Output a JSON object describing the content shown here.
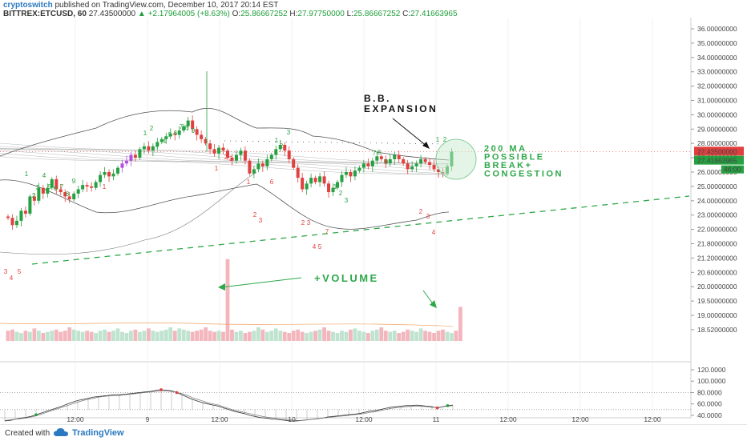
{
  "header": {
    "author": "cryptoswitch",
    "published": "published on TradingView.com, December 10, 2017 20:14 EST",
    "symbol": "BITTREX:ETCUSD, 60",
    "last": "27.43500000",
    "change": "+2.17964005 (+8.63%)",
    "ohlc": {
      "o_label": "O:",
      "o": "25.86667252",
      "h_label": "H:",
      "h": "27.97750000",
      "l_label": "L:",
      "l": "25.86667252",
      "c_label": "C:",
      "c": "27.41663965"
    }
  },
  "footer": {
    "created": "Created with",
    "brand": "TradingView"
  },
  "annotations": {
    "bb_line1": "B.B.",
    "bb_line2": "EXPANSION",
    "ma_lines": [
      "200 MA",
      "POSSIBLE",
      "BREAK+",
      "CONGESTION"
    ],
    "volume": "+VOLUME"
  },
  "colors": {
    "up": "#26a041",
    "down": "#e0403f",
    "purple": "#b34fe0",
    "vol_up": "#bfe3cf",
    "vol_down": "#f3b6bd",
    "annotation": "#2ea84a"
  },
  "chart_data": [
    {
      "type": "candlestick",
      "title": "BITTREX:ETCUSD, 60",
      "x_ticks": [
        "12:00",
        "9",
        "12:00",
        "10",
        "12:00",
        "11",
        "12:00",
        "12:00",
        "12:00"
      ],
      "y_ticks": [
        "36.00000000",
        "35.00000000",
        "34.00000000",
        "33.00000000",
        "32.00000000",
        "31.00000000",
        "30.00000000",
        "29.00000000",
        "28.00000000",
        "27.00000000",
        "26.00000000",
        "25.00000000",
        "24.00000000",
        "23.00000000",
        "22.00000000",
        "21.80000000",
        "21.20000000",
        "20.60000000",
        "20.00000000",
        "19.50000000",
        "19.00000000",
        "18.52000000"
      ],
      "ylim": [
        18.52,
        36.0
      ],
      "price_labels": {
        "last": "27.43500000",
        "close": "27.41663965",
        "countdown": "46:00"
      },
      "closes": [
        22.8,
        22.3,
        22.6,
        23.3,
        23.1,
        24.3,
        24.0,
        24.9,
        24.5,
        24.9,
        25.5,
        24.8,
        24.6,
        24.3,
        24.1,
        24.5,
        24.8,
        25.1,
        25.0,
        24.9,
        25.3,
        25.8,
        26.0,
        25.7,
        25.9,
        26.3,
        26.6,
        26.8,
        27.2,
        27.0,
        27.6,
        27.8,
        27.5,
        27.8,
        28.1,
        28.3,
        28.5,
        28.7,
        28.6,
        28.9,
        29.2,
        29.6,
        29.0,
        28.6,
        28.3,
        28.0,
        27.6,
        27.3,
        27.7,
        27.5,
        27.0,
        26.8,
        27.2,
        27.5,
        26.8,
        25.9,
        26.2,
        26.6,
        26.4,
        26.9,
        27.2,
        27.6,
        27.9,
        27.5,
        26.9,
        26.3,
        25.6,
        24.8,
        25.2,
        25.6,
        25.3,
        25.7,
        25.2,
        24.6,
        24.9,
        25.3,
        25.8,
        26.0,
        25.7,
        26.1,
        26.3,
        26.6,
        26.4,
        26.8,
        27.1,
        26.9,
        26.6,
        26.9,
        27.2,
        26.9,
        26.6,
        26.2,
        26.4,
        26.6,
        26.9,
        26.7,
        26.5,
        26.2,
        26.0,
        25.9,
        26.4,
        27.42
      ],
      "volumes": [
        9,
        10,
        8,
        7,
        9,
        8,
        11,
        9,
        7,
        8,
        9,
        10,
        8,
        9,
        12,
        10,
        9,
        8,
        9,
        8,
        7,
        9,
        10,
        8,
        9,
        11,
        8,
        7,
        9,
        10,
        8,
        9,
        11,
        9,
        8,
        9,
        10,
        12,
        9,
        11,
        10,
        9,
        8,
        9,
        10,
        12,
        9,
        8,
        9,
        8,
        72,
        10,
        8,
        9,
        7,
        8,
        9,
        12,
        10,
        8,
        9,
        11,
        9,
        8,
        7,
        9,
        10,
        8,
        7,
        8,
        9,
        10,
        12,
        9,
        8,
        7,
        9,
        8,
        10,
        11,
        9,
        8,
        7,
        9,
        10,
        12,
        9,
        8,
        9,
        7,
        8,
        10,
        9,
        8,
        11,
        9,
        8,
        7,
        9,
        10,
        8,
        7,
        9,
        30
      ],
      "overlays": [
        "Bollinger Bands",
        "Moving Averages",
        "Trendline"
      ],
      "annotations": [
        "B.B. EXPANSION",
        "200 MA POSSIBLE BREAK+ CONGESTION",
        "+VOLUME"
      ]
    },
    {
      "type": "line",
      "title": "",
      "y_ticks": [
        "120.0000",
        "100.0000",
        "80.0000",
        "60.0000",
        "40.0000"
      ],
      "ylim": [
        30,
        120
      ],
      "levels": [
        80,
        50
      ],
      "k": [
        30,
        31,
        33,
        35,
        36,
        38,
        41,
        44,
        47,
        50,
        53,
        56,
        60,
        63,
        66,
        68,
        70,
        72,
        73,
        74,
        75,
        76,
        76,
        77,
        78,
        79,
        80,
        81,
        82,
        84,
        85,
        84,
        83,
        80,
        76,
        72,
        68,
        65,
        62,
        60,
        58,
        56,
        53,
        50,
        47,
        45,
        43,
        40,
        38,
        36,
        35,
        34,
        33,
        32,
        31,
        30,
        30,
        31,
        32,
        33,
        34,
        35,
        37,
        38,
        39,
        40,
        41,
        42,
        43,
        45,
        47,
        48,
        50,
        52,
        54,
        55,
        56,
        57,
        57,
        58,
        57,
        56,
        55,
        53,
        55,
        57,
        58
      ],
      "d": [
        31,
        32,
        33,
        34,
        35,
        37,
        39,
        42,
        45,
        48,
        51,
        54,
        57,
        60,
        63,
        66,
        68,
        70,
        72,
        73,
        74,
        75,
        75,
        76,
        77,
        78,
        79,
        80,
        81,
        82,
        83,
        83,
        82,
        80,
        78,
        75,
        71,
        68,
        65,
        62,
        60,
        58,
        55,
        52,
        49,
        47,
        45,
        43,
        41,
        39,
        37,
        36,
        35,
        34,
        33,
        32,
        31,
        31,
        32,
        33,
        34,
        35,
        36,
        37,
        38,
        39,
        40,
        41,
        42,
        43,
        45,
        46,
        48,
        50,
        52,
        53,
        54,
        55,
        56,
        56,
        56,
        55,
        54,
        54,
        55,
        56,
        57
      ]
    }
  ]
}
